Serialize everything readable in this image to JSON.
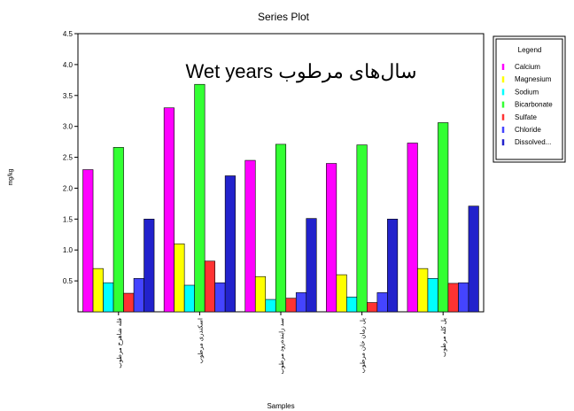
{
  "chart_data": {
    "type": "bar",
    "title": "Series Plot",
    "annotation": "Wet years سال‌های مرطوب",
    "xlabel": "Samples",
    "ylabel": "mg/kg",
    "ylim": [
      0,
      4.5
    ],
    "yticks": [
      "4.5",
      "4.0",
      "3.5",
      "3.0",
      "2.5",
      "2.0",
      "1.5",
      "1.0",
      "0.5"
    ],
    "ytick_values": [
      4.5,
      4.0,
      3.5,
      3.0,
      2.5,
      2.0,
      1.5,
      1.0,
      0.5
    ],
    "legend_title": "Legend",
    "legend_position": "top-right",
    "grid": false,
    "categories": [
      "قله شاهرخ مرطوب",
      "اسکندری مرطوب",
      "سد زاینده‌رود مرطوب",
      "پل زمان خان مرطوب",
      "پل کله مرطوب"
    ],
    "series": [
      {
        "name": "Calcium",
        "color": "#ff00ff",
        "values": [
          2.3,
          3.3,
          2.45,
          2.4,
          2.73
        ]
      },
      {
        "name": "Magnesium",
        "color": "#ffff00",
        "values": [
          0.7,
          1.1,
          0.57,
          0.6,
          0.7
        ]
      },
      {
        "name": "Sodium",
        "color": "#00ffff",
        "values": [
          0.47,
          0.43,
          0.2,
          0.24,
          0.54
        ]
      },
      {
        "name": "Bicarbonate",
        "color": "#33ff33",
        "values": [
          2.66,
          3.68,
          2.71,
          2.7,
          3.06
        ]
      },
      {
        "name": "Sulfate",
        "color": "#ff3333",
        "values": [
          0.3,
          0.82,
          0.22,
          0.15,
          0.46
        ]
      },
      {
        "name": "Chloride",
        "color": "#4444ff",
        "values": [
          0.54,
          0.47,
          0.31,
          0.31,
          0.47
        ]
      },
      {
        "name": "Dissolved...",
        "color": "#2222cc",
        "values": [
          1.5,
          2.2,
          1.51,
          1.5,
          1.71
        ]
      }
    ]
  }
}
